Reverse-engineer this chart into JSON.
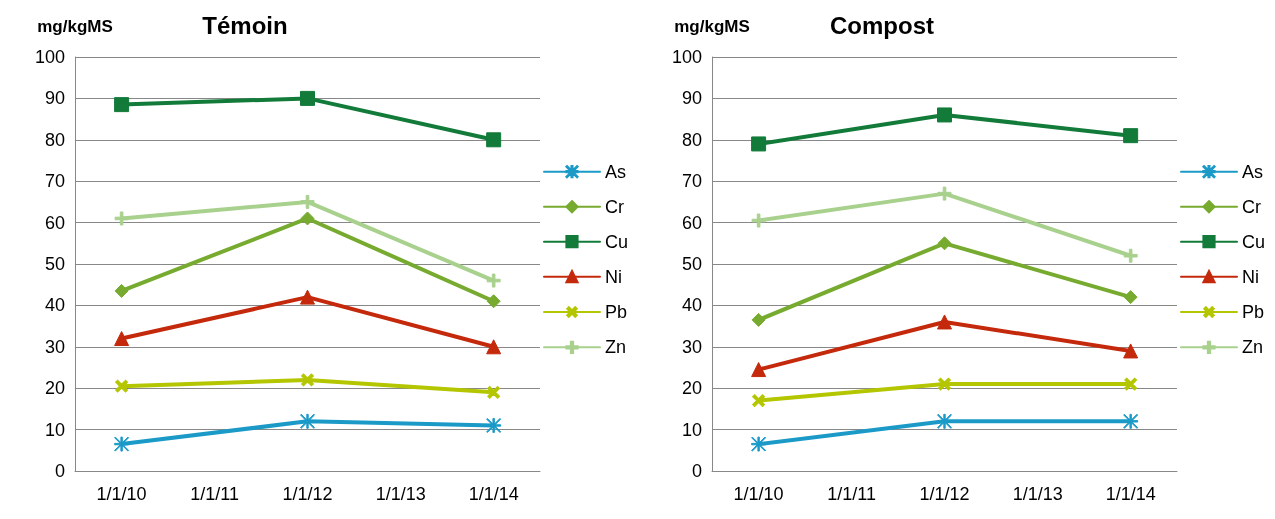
{
  "chart_data": [
    {
      "type": "line",
      "title": "Témoin",
      "ylabel": "mg/kgMS",
      "x": [
        "2010-01-01",
        "2012-01-01",
        "2014-01-01"
      ],
      "xlim": [
        "2009-07-02",
        "2014-07-02"
      ],
      "xticks": [
        {
          "value": "2010-01-01",
          "label": "1/1/10"
        },
        {
          "value": "2011-01-01",
          "label": "1/1/11"
        },
        {
          "value": "2012-01-01",
          "label": "1/1/12"
        },
        {
          "value": "2013-01-01",
          "label": "1/1/13"
        },
        {
          "value": "2014-01-01",
          "label": "1/1/14"
        }
      ],
      "ylim": [
        0,
        100
      ],
      "yticks": [
        0,
        10,
        20,
        30,
        40,
        50,
        60,
        70,
        80,
        90,
        100
      ],
      "grid": "y",
      "legend": "right",
      "line_style": "solid",
      "series": [
        {
          "name": "As",
          "color": "#1b9ac8",
          "marker": "star",
          "values": [
            6.5,
            12,
            11
          ]
        },
        {
          "name": "Cr",
          "color": "#77ab2f",
          "marker": "diamond",
          "values": [
            43.5,
            61,
            41
          ]
        },
        {
          "name": "Cu",
          "color": "#127b3a",
          "marker": "square",
          "values": [
            88.5,
            90,
            80
          ]
        },
        {
          "name": "Ni",
          "color": "#c4290c",
          "marker": "triangle",
          "values": [
            32,
            42,
            30
          ]
        },
        {
          "name": "Pb",
          "color": "#b4c600",
          "marker": "cross",
          "values": [
            20.5,
            22,
            19
          ]
        },
        {
          "name": "Zn",
          "color": "#a9d18e",
          "marker": "plus",
          "values": [
            61,
            65,
            46
          ]
        }
      ]
    },
    {
      "type": "line",
      "title": "Compost",
      "ylabel": "mg/kgMS",
      "x": [
        "2010-01-01",
        "2012-01-01",
        "2014-01-01"
      ],
      "xlim": [
        "2009-07-02",
        "2014-07-02"
      ],
      "xticks": [
        {
          "value": "2010-01-01",
          "label": "1/1/10"
        },
        {
          "value": "2011-01-01",
          "label": "1/1/11"
        },
        {
          "value": "2012-01-01",
          "label": "1/1/12"
        },
        {
          "value": "2013-01-01",
          "label": "1/1/13"
        },
        {
          "value": "2014-01-01",
          "label": "1/1/14"
        }
      ],
      "ylim": [
        0,
        100
      ],
      "yticks": [
        0,
        10,
        20,
        30,
        40,
        50,
        60,
        70,
        80,
        90,
        100
      ],
      "grid": "y",
      "legend": "right",
      "line_style": "solid",
      "series": [
        {
          "name": "As",
          "color": "#1b9ac8",
          "marker": "star",
          "values": [
            6.5,
            12,
            12
          ]
        },
        {
          "name": "Cr",
          "color": "#77ab2f",
          "marker": "diamond",
          "values": [
            36.5,
            55,
            42
          ]
        },
        {
          "name": "Cu",
          "color": "#127b3a",
          "marker": "square",
          "values": [
            79,
            86,
            81
          ]
        },
        {
          "name": "Ni",
          "color": "#c4290c",
          "marker": "triangle",
          "values": [
            24.5,
            36,
            29
          ]
        },
        {
          "name": "Pb",
          "color": "#b4c600",
          "marker": "cross",
          "values": [
            17,
            21,
            21
          ]
        },
        {
          "name": "Zn",
          "color": "#a9d18e",
          "marker": "plus",
          "values": [
            60.5,
            67,
            52
          ]
        }
      ]
    }
  ]
}
